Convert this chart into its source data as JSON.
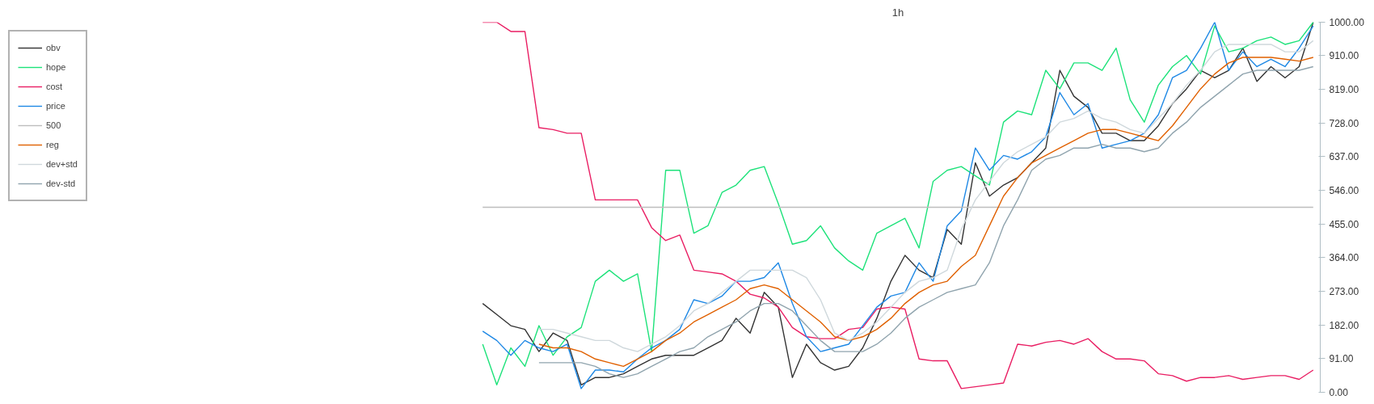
{
  "chart_data": {
    "type": "line",
    "title": "1h",
    "categories": [
      null,
      null,
      null,
      null,
      null,
      null,
      null,
      null,
      null,
      null,
      null,
      null,
      null,
      null,
      null,
      null,
      null,
      null,
      null,
      null,
      null,
      null,
      null,
      null,
      null,
      null,
      null,
      null,
      null,
      null,
      null,
      null,
      null,
      null,
      null,
      null,
      null,
      null,
      null,
      null,
      null,
      null,
      null,
      null,
      null,
      null,
      null,
      null,
      null,
      null,
      null,
      null,
      null,
      null,
      null,
      null,
      null,
      null,
      null,
      null
    ],
    "series": [
      {
        "name": "obv",
        "color": "#333333",
        "values": [
          240,
          210,
          180,
          170,
          110,
          160,
          140,
          20,
          40,
          40,
          50,
          70,
          90,
          100,
          100,
          100,
          120,
          140,
          200,
          160,
          270,
          230,
          40,
          130,
          80,
          60,
          70,
          120,
          200,
          300,
          370,
          330,
          310,
          440,
          400,
          620,
          530,
          560,
          580,
          620,
          660,
          870,
          800,
          770,
          700,
          700,
          680,
          680,
          720,
          780,
          820,
          870,
          850,
          870,
          930,
          840,
          880,
          850,
          880,
          1000
        ]
      },
      {
        "name": "hope",
        "color": "#1de27a",
        "values": [
          130,
          20,
          120,
          70,
          180,
          100,
          150,
          175,
          300,
          330,
          300,
          320,
          110,
          600,
          600,
          430,
          450,
          540,
          560,
          600,
          610,
          510,
          400,
          410,
          450,
          390,
          355,
          330,
          430,
          450,
          470,
          390,
          570,
          600,
          610,
          585,
          560,
          730,
          760,
          750,
          870,
          820,
          890,
          890,
          870,
          930,
          790,
          730,
          830,
          880,
          910,
          860,
          990,
          920,
          930,
          950,
          960,
          940,
          950,
          1000
        ]
      },
      {
        "name": "cost",
        "color": "#e91e63",
        "values": [
          1000,
          1000,
          975,
          975,
          715,
          710,
          700,
          700,
          520,
          520,
          520,
          520,
          445,
          410,
          425,
          330,
          325,
          320,
          300,
          265,
          255,
          230,
          175,
          150,
          145,
          145,
          170,
          175,
          225,
          230,
          225,
          90,
          85,
          85,
          10,
          15,
          20,
          25,
          130,
          125,
          135,
          140,
          130,
          145,
          110,
          90,
          90,
          85,
          50,
          45,
          30,
          40,
          40,
          45,
          35,
          40,
          45,
          45,
          35,
          60
        ]
      },
      {
        "name": "price",
        "color": "#1e88e5",
        "values": [
          165,
          140,
          100,
          140,
          120,
          110,
          130,
          10,
          60,
          60,
          55,
          90,
          120,
          140,
          170,
          250,
          240,
          260,
          300,
          300,
          310,
          350,
          240,
          150,
          110,
          120,
          130,
          180,
          230,
          260,
          270,
          350,
          300,
          450,
          490,
          660,
          600,
          640,
          630,
          650,
          690,
          810,
          750,
          780,
          660,
          670,
          680,
          700,
          750,
          850,
          870,
          930,
          1000,
          870,
          920,
          880,
          900,
          880,
          930,
          990
        ]
      },
      {
        "name": "500",
        "color": "#bdbdbd",
        "values": [
          500,
          500,
          500,
          500,
          500,
          500,
          500,
          500,
          500,
          500,
          500,
          500,
          500,
          500,
          500,
          500,
          500,
          500,
          500,
          500,
          500,
          500,
          500,
          500,
          500,
          500,
          500,
          500,
          500,
          500,
          500,
          500,
          500,
          500,
          500,
          500,
          500,
          500,
          500,
          500,
          500,
          500,
          500,
          500,
          500,
          500,
          500,
          500,
          500,
          500,
          500,
          500,
          500,
          500,
          500,
          500,
          500,
          500,
          500,
          500
        ]
      },
      {
        "name": "reg",
        "color": "#e06000",
        "values": [
          null,
          null,
          null,
          null,
          130,
          120,
          120,
          110,
          90,
          80,
          70,
          90,
          110,
          140,
          160,
          190,
          210,
          230,
          250,
          280,
          290,
          280,
          250,
          220,
          190,
          150,
          140,
          150,
          170,
          200,
          240,
          270,
          290,
          300,
          340,
          370,
          450,
          530,
          580,
          620,
          640,
          660,
          680,
          700,
          710,
          710,
          700,
          690,
          680,
          720,
          770,
          820,
          860,
          890,
          905,
          905,
          905,
          900,
          895,
          905
        ]
      },
      {
        "name": "dev+std",
        "color": "#cfd8dc",
        "values": [
          null,
          null,
          null,
          null,
          170,
          170,
          160,
          150,
          140,
          140,
          120,
          110,
          130,
          150,
          180,
          220,
          240,
          270,
          300,
          330,
          330,
          330,
          330,
          310,
          250,
          160,
          140,
          160,
          190,
          230,
          270,
          300,
          310,
          330,
          440,
          520,
          570,
          620,
          650,
          670,
          690,
          730,
          740,
          760,
          740,
          730,
          710,
          700,
          740,
          780,
          830,
          870,
          920,
          940,
          940,
          940,
          940,
          920,
          920,
          950
        ]
      },
      {
        "name": "dev-std",
        "color": "#90a4ae",
        "values": [
          null,
          null,
          null,
          null,
          80,
          80,
          80,
          80,
          70,
          50,
          40,
          50,
          70,
          90,
          110,
          120,
          150,
          170,
          190,
          220,
          240,
          240,
          220,
          180,
          140,
          110,
          110,
          110,
          130,
          160,
          200,
          230,
          250,
          270,
          280,
          290,
          350,
          450,
          520,
          600,
          630,
          640,
          660,
          660,
          670,
          660,
          660,
          650,
          660,
          700,
          730,
          770,
          800,
          830,
          860,
          870,
          870,
          870,
          870,
          880
        ]
      }
    ],
    "ylim": [
      0,
      1000
    ],
    "yticks": [
      {
        "value": 0,
        "label": "0.00"
      },
      {
        "value": 91,
        "label": "91.00"
      },
      {
        "value": 182,
        "label": "182.00"
      },
      {
        "value": 273,
        "label": "273.00"
      },
      {
        "value": 364,
        "label": "364.00"
      },
      {
        "value": 455,
        "label": "455.00"
      },
      {
        "value": 546,
        "label": "546.00"
      },
      {
        "value": 637,
        "label": "637.00"
      },
      {
        "value": 728,
        "label": "728.00"
      },
      {
        "value": 819,
        "label": "819.00"
      },
      {
        "value": 910,
        "label": "910.00"
      },
      {
        "value": 1000,
        "label": "1000.00"
      }
    ],
    "grid": false,
    "legend": "top left",
    "tick_labels": "y"
  }
}
